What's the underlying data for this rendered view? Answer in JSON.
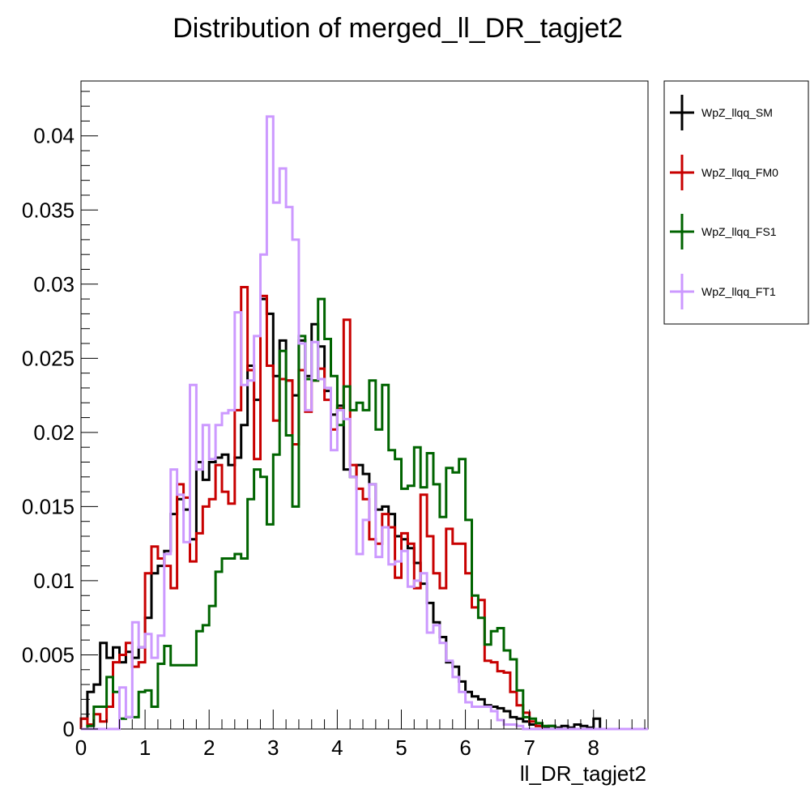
{
  "chart_data": {
    "type": "step-histogram",
    "title": "Distribution of merged_ll_DR_tagjet2",
    "xlabel": "ll_DR_tagjet2",
    "ylabel": "",
    "xlim": [
      0,
      8.85
    ],
    "ylim": [
      0,
      0.0437
    ],
    "x_ticks": [
      "0",
      "1",
      "2",
      "3",
      "4",
      "5",
      "6",
      "7",
      "8"
    ],
    "y_ticks": [
      "0",
      "0.005",
      "0.01",
      "0.015",
      "0.02",
      "0.025",
      "0.03",
      "0.035",
      "0.04"
    ],
    "grid": false,
    "legend_position": "right, outside plot",
    "bin_edges": [
      0.0,
      0.1,
      0.2,
      0.3,
      0.4,
      0.5,
      0.6,
      0.7,
      0.8,
      0.9,
      1.0,
      1.1,
      1.2,
      1.3,
      1.4,
      1.5,
      1.6,
      1.7,
      1.8,
      1.9,
      2.0,
      2.1,
      2.2,
      2.3,
      2.4,
      2.5,
      2.6,
      2.7,
      2.8,
      2.9,
      3.0,
      3.1,
      3.2,
      3.3,
      3.4,
      3.5,
      3.6,
      3.7,
      3.8,
      3.9,
      4.0,
      4.1,
      4.2,
      4.3,
      4.4,
      4.5,
      4.6,
      4.7,
      4.8,
      4.9,
      5.0,
      5.1,
      5.2,
      5.3,
      5.4,
      5.5,
      5.6,
      5.7,
      5.8,
      5.9,
      6.0,
      6.1,
      6.2,
      6.3,
      6.4,
      6.5,
      6.6,
      6.7,
      6.8,
      6.9,
      7.0,
      7.1,
      7.2,
      7.3,
      7.4,
      7.5,
      7.6,
      7.7,
      7.8,
      7.9,
      8.0,
      8.1,
      8.2,
      8.3,
      8.4,
      8.5,
      8.6,
      8.7,
      8.8,
      8.9
    ],
    "series": [
      {
        "name": "WpZ_llqq_SM",
        "color": "#000000",
        "values": [
          0.0007,
          0.0025,
          0.003,
          0.0058,
          0.0048,
          0.0055,
          0.0045,
          0.0052,
          0.0048,
          0.0055,
          0.0075,
          0.0105,
          0.011,
          0.012,
          0.0145,
          0.0155,
          0.0148,
          0.0128,
          0.018,
          0.0168,
          0.018,
          0.0183,
          0.0185,
          0.0178,
          0.0183,
          0.0205,
          0.0245,
          0.0222,
          0.029,
          0.028,
          0.0238,
          0.0262,
          0.0235,
          0.0225,
          0.0262,
          0.0238,
          0.0273,
          0.0258,
          0.0228,
          0.0212,
          0.0218,
          0.0175,
          0.017,
          0.0178,
          0.0172,
          0.0165,
          0.0148,
          0.015,
          0.0145,
          0.013,
          0.0128,
          0.0122,
          0.0112,
          0.0098,
          0.0085,
          0.0072,
          0.0062,
          0.0045,
          0.0042,
          0.0032,
          0.0025,
          0.0022,
          0.002,
          0.0016,
          0.0015,
          0.0014,
          0.0012,
          0.0008,
          0.0007,
          0.0005,
          0.0003,
          0.0002,
          0.0001,
          0.0002,
          0.0001,
          0.0002,
          0.0001,
          0.0003,
          0.0002,
          0.0001,
          0.0007,
          0.0,
          0.0,
          0.0,
          0.0,
          0.0,
          0.0,
          0.0,
          0.0
        ]
      },
      {
        "name": "WpZ_llqq_FM0",
        "color": "#c80000",
        "values": [
          0.0007,
          0.0003,
          0.001,
          0.0005,
          0.0015,
          0.0045,
          0.005,
          0.0058,
          0.0042,
          0.0045,
          0.0105,
          0.0123,
          0.0115,
          0.011,
          0.0095,
          0.0165,
          0.0156,
          0.0113,
          0.0132,
          0.015,
          0.0155,
          0.0178,
          0.016,
          0.0152,
          0.0215,
          0.0298,
          0.0242,
          0.0182,
          0.0292,
          0.0245,
          0.0208,
          0.0236,
          0.0235,
          0.0192,
          0.0242,
          0.0214,
          0.0235,
          0.0243,
          0.0222,
          0.0202,
          0.0216,
          0.0276,
          0.0178,
          0.0162,
          0.0155,
          0.0128,
          0.0125,
          0.0145,
          0.0136,
          0.0102,
          0.0132,
          0.0125,
          0.0095,
          0.0158,
          0.013,
          0.0105,
          0.0095,
          0.0135,
          0.0125,
          0.0125,
          0.0105,
          0.0082,
          0.0087,
          0.0046,
          0.0045,
          0.0039,
          0.0038,
          0.0025,
          0.0016,
          0.0011,
          0.0005,
          0.0002,
          0.0,
          0.0,
          0.0,
          0.0,
          0.0,
          0.0,
          0.0,
          0.0,
          0.0,
          0.0,
          0.0,
          0.0,
          0.0,
          0.0,
          0.0,
          0.0,
          0.0
        ]
      },
      {
        "name": "WpZ_llqq_FS1",
        "color": "#006400",
        "values": [
          0.0,
          0.0002,
          0.0015,
          0.0015,
          0.0035,
          0.0025,
          0.0007,
          0.0008,
          0.0008,
          0.0025,
          0.0026,
          0.0015,
          0.0044,
          0.0056,
          0.0043,
          0.0043,
          0.0043,
          0.0043,
          0.0066,
          0.007,
          0.0083,
          0.0106,
          0.0115,
          0.0115,
          0.0118,
          0.0115,
          0.0155,
          0.0175,
          0.017,
          0.0138,
          0.0185,
          0.0255,
          0.0198,
          0.015,
          0.0265,
          0.0236,
          0.0235,
          0.029,
          0.0263,
          0.0238,
          0.0205,
          0.0231,
          0.0215,
          0.022,
          0.0215,
          0.0235,
          0.0202,
          0.0232,
          0.0188,
          0.0182,
          0.0162,
          0.0164,
          0.019,
          0.0163,
          0.0186,
          0.0165,
          0.0143,
          0.0176,
          0.0173,
          0.0182,
          0.0141,
          0.009,
          0.0075,
          0.0057,
          0.0066,
          0.0068,
          0.0053,
          0.0047,
          0.0026,
          0.0008,
          0.0007,
          0.0004,
          0.0002,
          0.0002,
          0.0,
          0.0,
          0.0,
          0.0,
          0.0,
          0.0,
          0.0,
          0.0,
          0.0,
          0.0,
          0.0,
          0.0,
          0.0,
          0.0,
          0.0
        ]
      },
      {
        "name": "WpZ_llqq_FT1",
        "color": "#cc99ff",
        "values": [
          0.0,
          0.0,
          0.0,
          0.0,
          0.0,
          0.0,
          0.0028,
          0.0008,
          0.0072,
          0.0055,
          0.0064,
          0.0048,
          0.0063,
          0.0118,
          0.0175,
          0.0158,
          0.0126,
          0.0232,
          0.0175,
          0.0205,
          0.0182,
          0.0205,
          0.0213,
          0.0215,
          0.0281,
          0.0232,
          0.0235,
          0.0265,
          0.032,
          0.0413,
          0.0355,
          0.0378,
          0.0352,
          0.033,
          0.026,
          0.0215,
          0.0261,
          0.0236,
          0.023,
          0.0188,
          0.0215,
          0.0209,
          0.017,
          0.0118,
          0.0141,
          0.0165,
          0.0116,
          0.0136,
          0.0111,
          0.0113,
          0.012,
          0.0096,
          0.01,
          0.0105,
          0.0065,
          0.007,
          0.0058,
          0.0046,
          0.0035,
          0.0025,
          0.0018,
          0.0015,
          0.0015,
          0.0015,
          0.0012,
          0.0006,
          0.0003,
          0.0003,
          0.0002,
          0.0,
          0.0,
          0.0,
          0.0,
          0.0,
          0.0,
          0.0,
          0.0,
          0.0,
          0.0,
          0.0,
          0.0,
          0.0,
          0.0,
          0.0,
          0.0,
          0.0,
          0.0,
          0.0,
          0.0
        ]
      }
    ]
  }
}
